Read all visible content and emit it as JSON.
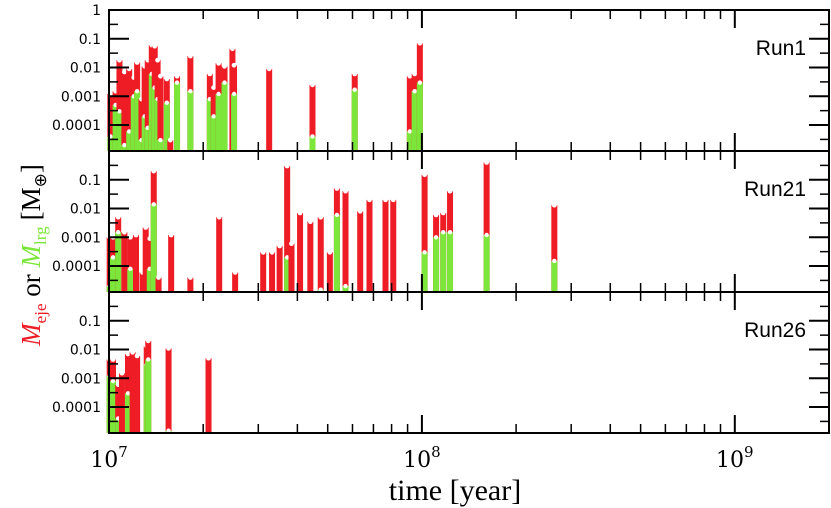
{
  "chart_data": {
    "type": "bar",
    "xlabel": "time [year]",
    "ylabel": {
      "red_text": "M",
      "red_sub": "eje",
      "or_text": " or ",
      "green_text": "M",
      "green_sub": "lrg",
      "unit_text": "[M",
      "unit_sub": "⊕",
      "unit_close": "]"
    },
    "xscale": "log",
    "xlim": [
      10000000,
      2000000000
    ],
    "ylim_log": [
      1.25e-05,
      1
    ],
    "x_ticks": [
      {
        "value": 10000000,
        "base": "10",
        "exp": "7"
      },
      {
        "value": 100000000,
        "base": "10",
        "exp": "8"
      },
      {
        "value": 1000000000,
        "base": "10",
        "exp": "9"
      }
    ],
    "y_ticks": [
      {
        "value": 1,
        "label": "1"
      },
      {
        "value": 0.1,
        "label": "0.1"
      },
      {
        "value": 0.01,
        "label": "0.01"
      },
      {
        "value": 0.001,
        "label": "0.001"
      },
      {
        "value": 0.0001,
        "label": "0.0001"
      }
    ],
    "colors": {
      "ejected": "#ee1c25",
      "largest": "#7ce63a",
      "axis": "#000000"
    },
    "series_legend": [
      {
        "name": "M_eje",
        "color": "#ee1c25"
      },
      {
        "name": "M_lrg",
        "color": "#7ce63a"
      }
    ],
    "panels": [
      {
        "label": "Run1",
        "show_top_tick_1": true,
        "events": [
          {
            "t": 10100000,
            "eje": 0.0012,
            "lrg": 4e-05
          },
          {
            "t": 10500000,
            "eje": 0.0015,
            "lrg": 0.0005
          },
          {
            "t": 10800000,
            "eje": 0.018,
            "lrg": 0.0003
          },
          {
            "t": 11200000,
            "eje": 0.007,
            "lrg": 2e-05
          },
          {
            "t": 11600000,
            "eje": 0.009,
            "lrg": 6e-05
          },
          {
            "t": 12000000,
            "eje": 0.0045,
            "lrg": 0.001
          },
          {
            "t": 12300000,
            "eje": 0.015,
            "lrg": 0.0015
          },
          {
            "t": 12700000,
            "eje": 0.0008,
            "lrg": 3e-05
          },
          {
            "t": 13000000,
            "eje": 0.011,
            "lrg": 0.0002
          },
          {
            "t": 13300000,
            "eje": 0.018,
            "lrg": 8e-05
          },
          {
            "t": 13700000,
            "eje": 0.06,
            "lrg": 0.006
          },
          {
            "t": 14000000,
            "eje": 0.055,
            "lrg": 0.002
          },
          {
            "t": 14300000,
            "eje": 0.018,
            "lrg": 0.0008
          },
          {
            "t": 14600000,
            "eje": 0.005,
            "lrg": 3e-05
          },
          {
            "t": 15300000,
            "eje": 0.004,
            "lrg": 0.0006
          },
          {
            "t": 15700000,
            "eje": 3e-05,
            "lrg": 0.0
          },
          {
            "t": 16500000,
            "eje": 0.005,
            "lrg": 0.003
          },
          {
            "t": 18200000,
            "eje": 0.025,
            "lrg": 0.0015
          },
          {
            "t": 21000000,
            "eje": 0.006,
            "lrg": 0.0008
          },
          {
            "t": 21600000,
            "eje": 0.002,
            "lrg": 0.0002
          },
          {
            "t": 22400000,
            "eje": 0.014,
            "lrg": 0.0012
          },
          {
            "t": 23400000,
            "eje": 0.011,
            "lrg": 0.003
          },
          {
            "t": 24800000,
            "eje": 0.045,
            "lrg": 0.0
          },
          {
            "t": 25100000,
            "eje": 0.012,
            "lrg": 0.0012
          },
          {
            "t": 32500000,
            "eje": 0.009,
            "lrg": 0.0
          },
          {
            "t": 44700000,
            "eje": 0.0025,
            "lrg": 4e-05
          },
          {
            "t": 61000000,
            "eje": 0.006,
            "lrg": 0.0017
          },
          {
            "t": 91500000,
            "eje": 0.005,
            "lrg": 6e-05
          },
          {
            "t": 94800000,
            "eje": 0.006,
            "lrg": 0.0015
          },
          {
            "t": 98500000,
            "eje": 0.07,
            "lrg": 0.003
          }
        ]
      },
      {
        "label": "Run21",
        "show_top_tick_1": false,
        "events": [
          {
            "t": 10050000,
            "eje": 0.001,
            "lrg": 2e-05
          },
          {
            "t": 10300000,
            "eje": 0.001,
            "lrg": 0.0002
          },
          {
            "t": 10700000,
            "eje": 0.005,
            "lrg": 0.0015
          },
          {
            "t": 11200000,
            "eje": 0.0015,
            "lrg": 0.0
          },
          {
            "t": 11700000,
            "eje": 0.001,
            "lrg": 8e-05
          },
          {
            "t": 12200000,
            "eje": 0.0012,
            "lrg": 0.0
          },
          {
            "t": 12800000,
            "eje": 6e-05,
            "lrg": 0.0
          },
          {
            "t": 13100000,
            "eje": 0.0022,
            "lrg": 0.0
          },
          {
            "t": 13500000,
            "eje": 0.0009,
            "lrg": 8e-05
          },
          {
            "t": 13900000,
            "eje": 0.2,
            "lrg": 0.014
          },
          {
            "t": 14400000,
            "eje": 4e-05,
            "lrg": 0.0
          },
          {
            "t": 15800000,
            "eje": 0.0012,
            "lrg": 0.0
          },
          {
            "t": 18200000,
            "eje": 4e-05,
            "lrg": 0.0
          },
          {
            "t": 22500000,
            "eje": 0.005,
            "lrg": 0.0
          },
          {
            "t": 25300000,
            "eje": 6e-05,
            "lrg": 0.0
          },
          {
            "t": 31100000,
            "eje": 0.0003,
            "lrg": 0.0
          },
          {
            "t": 33200000,
            "eje": 0.0003,
            "lrg": 0.0
          },
          {
            "t": 35100000,
            "eje": 0.0005,
            "lrg": 0.0
          },
          {
            "t": 37100000,
            "eje": 0.3,
            "lrg": 0.0002
          },
          {
            "t": 38300000,
            "eje": 0.0006,
            "lrg": 0.0
          },
          {
            "t": 40800000,
            "eje": 0.007,
            "lrg": 0.0
          },
          {
            "t": 44000000,
            "eje": 0.0035,
            "lrg": 0.0
          },
          {
            "t": 47500000,
            "eje": 0.005,
            "lrg": 1.5e-05
          },
          {
            "t": 50800000,
            "eje": 0.0003,
            "lrg": 0.0
          },
          {
            "t": 53500000,
            "eje": 0.05,
            "lrg": 0.006
          },
          {
            "t": 57000000,
            "eje": 0.04,
            "lrg": 2e-05
          },
          {
            "t": 63500000,
            "eje": 0.008,
            "lrg": 0.0
          },
          {
            "t": 68000000,
            "eje": 0.02,
            "lrg": 0.0
          },
          {
            "t": 76500000,
            "eje": 0.02,
            "lrg": 0.0
          },
          {
            "t": 81000000,
            "eje": 0.02,
            "lrg": 1e-05
          },
          {
            "t": 102000000,
            "eje": 0.15,
            "lrg": 0.0003
          },
          {
            "t": 111000000,
            "eje": 0.006,
            "lrg": 0.001
          },
          {
            "t": 117000000,
            "eje": 0.007,
            "lrg": 0.0015
          },
          {
            "t": 123000000,
            "eje": 0.04,
            "lrg": 0.0015
          },
          {
            "t": 161000000,
            "eje": 0.4,
            "lrg": 0.0012
          },
          {
            "t": 265000000,
            "eje": 0.013,
            "lrg": 0.00015
          }
        ]
      },
      {
        "label": "Run26",
        "show_top_tick_1": false,
        "events": [
          {
            "t": 10050000,
            "eje": 0.0045,
            "lrg": 0.0012
          },
          {
            "t": 10300000,
            "eje": 0.0045,
            "lrg": 0.0008
          },
          {
            "t": 10700000,
            "eje": 0.0006,
            "lrg": 4e-05
          },
          {
            "t": 11000000,
            "eje": 0.0015,
            "lrg": 0.0
          },
          {
            "t": 11500000,
            "eje": 0.007,
            "lrg": 0.0003
          },
          {
            "t": 11900000,
            "eje": 0.008,
            "lrg": 0.0
          },
          {
            "t": 12300000,
            "eje": 0.006,
            "lrg": 0.0
          },
          {
            "t": 13200000,
            "eje": 0.013,
            "lrg": 0.003
          },
          {
            "t": 13350000,
            "eje": 0.02,
            "lrg": 0.0045
          },
          {
            "t": 15500000,
            "eje": 0.011,
            "lrg": 1.5e-05
          },
          {
            "t": 20800000,
            "eje": 0.005,
            "lrg": 0.0
          }
        ]
      }
    ]
  }
}
